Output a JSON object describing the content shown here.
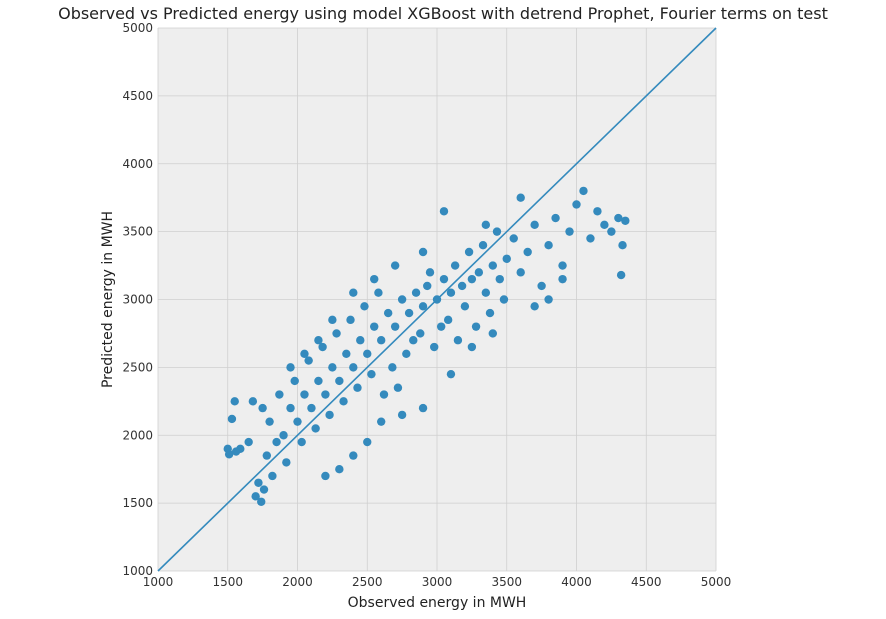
{
  "chart_data": {
    "type": "scatter",
    "title": "Observed vs Predicted energy using model XGBoost with detrend Prophet, Fourier terms on test",
    "xlabel": "Observed energy in MWH",
    "ylabel": "Predicted energy in MWH",
    "xlim": [
      1000,
      5000
    ],
    "ylim": [
      1000,
      5000
    ],
    "xticks": [
      "1000",
      "1500",
      "2000",
      "2500",
      "3000",
      "3500",
      "4000",
      "4500",
      "5000"
    ],
    "yticks": [
      "1000",
      "1500",
      "2000",
      "2500",
      "3000",
      "3500",
      "4000",
      "4500",
      "5000"
    ],
    "grid": true,
    "colors": {
      "points": "#348abd",
      "identity_line": "#348abd",
      "plot_background": "#eeeeee",
      "grid": "#cfcfcf"
    },
    "reference_line": {
      "from": [
        1000,
        1000
      ],
      "to": [
        5000,
        5000
      ]
    },
    "series": [
      {
        "points": [
          [
            1500,
            1900
          ],
          [
            1510,
            1860
          ],
          [
            1530,
            2120
          ],
          [
            1550,
            2250
          ],
          [
            1560,
            1880
          ],
          [
            1590,
            1900
          ],
          [
            1650,
            1950
          ],
          [
            1680,
            2250
          ],
          [
            1700,
            1550
          ],
          [
            1720,
            1650
          ],
          [
            1740,
            1510
          ],
          [
            1750,
            2200
          ],
          [
            1760,
            1600
          ],
          [
            1780,
            1850
          ],
          [
            1800,
            2100
          ],
          [
            1820,
            1700
          ],
          [
            1850,
            1950
          ],
          [
            1870,
            2300
          ],
          [
            1900,
            2000
          ],
          [
            1920,
            1800
          ],
          [
            1950,
            2200
          ],
          [
            1980,
            2400
          ],
          [
            2000,
            2100
          ],
          [
            2030,
            1950
          ],
          [
            2050,
            2300
          ],
          [
            2080,
            2550
          ],
          [
            2100,
            2200
          ],
          [
            2130,
            2050
          ],
          [
            2150,
            2400
          ],
          [
            2180,
            2650
          ],
          [
            2200,
            2300
          ],
          [
            2230,
            2150
          ],
          [
            2250,
            2500
          ],
          [
            2280,
            2750
          ],
          [
            2300,
            2400
          ],
          [
            2330,
            2250
          ],
          [
            2350,
            2600
          ],
          [
            2380,
            2850
          ],
          [
            2400,
            2500
          ],
          [
            2430,
            2350
          ],
          [
            2450,
            2700
          ],
          [
            2480,
            2950
          ],
          [
            2500,
            2600
          ],
          [
            2530,
            2450
          ],
          [
            2550,
            2800
          ],
          [
            2580,
            3050
          ],
          [
            2600,
            2700
          ],
          [
            2620,
            2300
          ],
          [
            2650,
            2900
          ],
          [
            2680,
            2500
          ],
          [
            2700,
            2800
          ],
          [
            2720,
            2350
          ],
          [
            2750,
            3000
          ],
          [
            2780,
            2600
          ],
          [
            2800,
            2900
          ],
          [
            2830,
            2700
          ],
          [
            2850,
            3050
          ],
          [
            2880,
            2750
          ],
          [
            2900,
            2950
          ],
          [
            2930,
            3100
          ],
          [
            2950,
            3200
          ],
          [
            2980,
            2650
          ],
          [
            3000,
            3000
          ],
          [
            3030,
            2800
          ],
          [
            3050,
            3150
          ],
          [
            3080,
            2850
          ],
          [
            3100,
            3050
          ],
          [
            3130,
            3250
          ],
          [
            3150,
            2700
          ],
          [
            3180,
            3100
          ],
          [
            3200,
            2950
          ],
          [
            3230,
            3350
          ],
          [
            3250,
            3150
          ],
          [
            3280,
            2800
          ],
          [
            3300,
            3200
          ],
          [
            3330,
            3400
          ],
          [
            3350,
            3050
          ],
          [
            3380,
            2900
          ],
          [
            3400,
            3250
          ],
          [
            3430,
            3500
          ],
          [
            3450,
            3150
          ],
          [
            3480,
            3000
          ],
          [
            3500,
            3300
          ],
          [
            3550,
            3450
          ],
          [
            3600,
            3200
          ],
          [
            3650,
            3350
          ],
          [
            3700,
            3550
          ],
          [
            3750,
            3100
          ],
          [
            3800,
            3400
          ],
          [
            3850,
            3600
          ],
          [
            3900,
            3250
          ],
          [
            3950,
            3500
          ],
          [
            4000,
            3700
          ],
          [
            4050,
            3800
          ],
          [
            4100,
            3450
          ],
          [
            4150,
            3650
          ],
          [
            4200,
            3550
          ],
          [
            4250,
            3500
          ],
          [
            4300,
            3600
          ],
          [
            4330,
            3400
          ],
          [
            4350,
            3580
          ],
          [
            4320,
            3180
          ],
          [
            3800,
            3000
          ],
          [
            3700,
            2950
          ],
          [
            3400,
            2750
          ],
          [
            3250,
            2650
          ],
          [
            3100,
            2450
          ],
          [
            2900,
            2200
          ],
          [
            2750,
            2150
          ],
          [
            2600,
            2100
          ],
          [
            2500,
            1950
          ],
          [
            2400,
            1850
          ],
          [
            2300,
            1750
          ],
          [
            2200,
            1700
          ],
          [
            2150,
            2700
          ],
          [
            2050,
            2600
          ],
          [
            1950,
            2500
          ],
          [
            2250,
            2850
          ],
          [
            2400,
            3050
          ],
          [
            2550,
            3150
          ],
          [
            2700,
            3250
          ],
          [
            2900,
            3350
          ],
          [
            3050,
            3650
          ],
          [
            3350,
            3550
          ],
          [
            3600,
            3750
          ],
          [
            3900,
            3150
          ]
        ]
      }
    ]
  }
}
